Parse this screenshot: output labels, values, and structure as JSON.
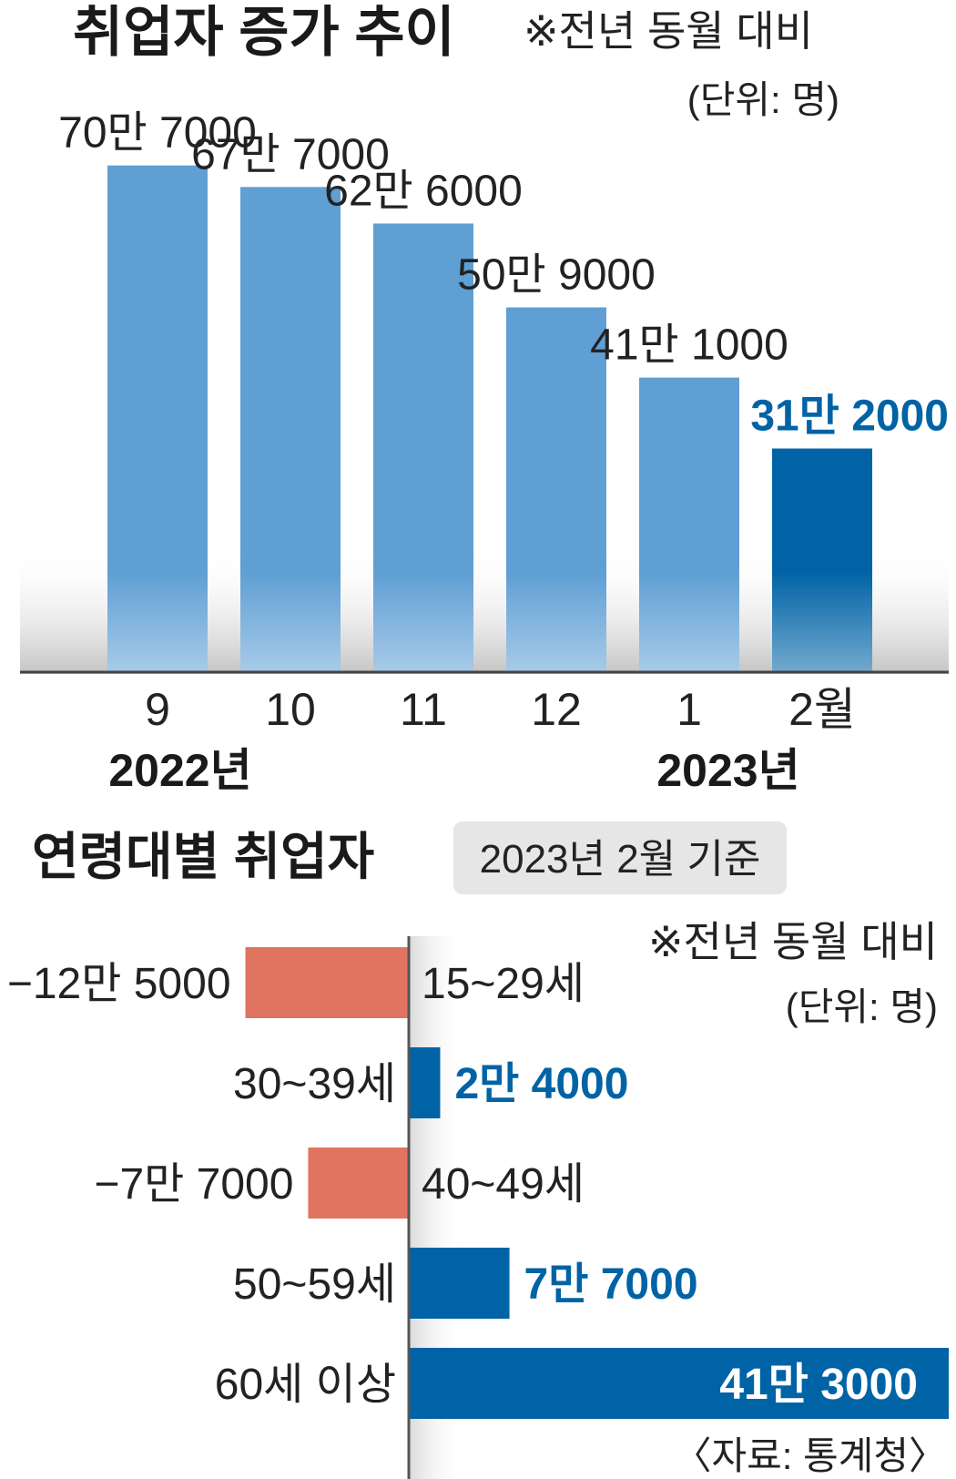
{
  "chart_data": [
    {
      "type": "bar",
      "title": "취업자 증가 추이",
      "note": "※전년 동월 대비",
      "unit": "(단위: 명)",
      "categories": [
        "9",
        "10",
        "11",
        "12",
        "1",
        "2월"
      ],
      "year_labels": [
        "2022년",
        "2023년"
      ],
      "values": [
        707000,
        677000,
        626000,
        509000,
        411000,
        312000
      ],
      "value_labels": [
        "70만 7000",
        "67만 7000",
        "62만 6000",
        "50만 9000",
        "41만 1000",
        "31만 2000"
      ],
      "ylim": [
        0,
        760000
      ],
      "highlight_index": 5,
      "colors": {
        "bar": "#5f9fd4",
        "highlight": "#0063a6",
        "highlight_label": "#0063a6"
      }
    },
    {
      "type": "bar",
      "orientation": "horizontal",
      "title": "연령대별 취업자",
      "badge": "2023년 2월 기준",
      "note": "※전년 동월 대비",
      "unit": "(단위: 명)",
      "source": "〈자료: 통계청〉",
      "categories": [
        "15~29세",
        "30~39세",
        "40~49세",
        "50~59세",
        "60세 이상"
      ],
      "values": [
        -125000,
        24000,
        -77000,
        77000,
        413000
      ],
      "value_labels": [
        "−12만 5000",
        "2만 4000",
        "−7만 7000",
        "7만 7000",
        "41만 3000"
      ],
      "colors": {
        "positive": "#0063a6",
        "negative": "#e07460",
        "badge_bg": "#e6e6e6"
      }
    }
  ]
}
